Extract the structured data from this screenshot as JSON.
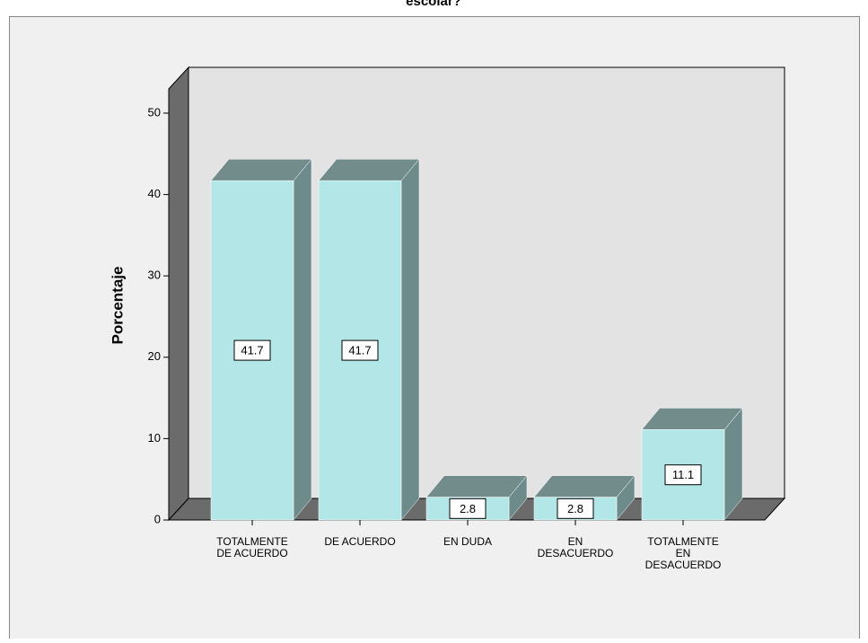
{
  "chart_data": {
    "type": "bar3d",
    "title": "escolar?",
    "y_label": "Porcentaje",
    "categories": [
      [
        "TOTALMENTE",
        "DE ACUERDO"
      ],
      [
        "DE ACUERDO"
      ],
      [
        "EN DUDA"
      ],
      [
        "EN",
        "DESACUERDO"
      ],
      [
        "TOTALMENTE",
        "EN",
        "DESACUERDO"
      ]
    ],
    "values": [
      41.7,
      41.7,
      2.8,
      2.8,
      11.1
    ],
    "color": "#b3e6e6",
    "ylim": [
      0,
      50
    ],
    "yticks": [
      0,
      10,
      20,
      30,
      40,
      50
    ]
  }
}
